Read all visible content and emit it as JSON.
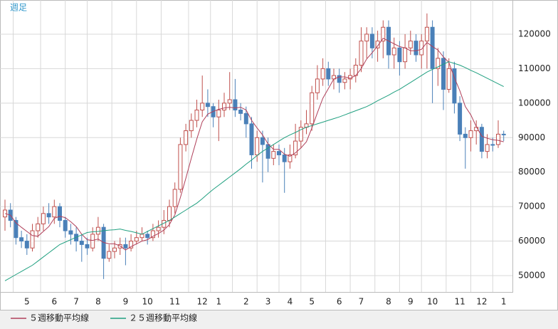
{
  "chart_data": {
    "type": "candlestick",
    "title": "週足",
    "categories": [
      null,
      null,
      null,
      null,
      "5",
      null,
      null,
      null,
      null,
      "6",
      null,
      null,
      null,
      "7",
      null,
      null,
      null,
      "8",
      null,
      null,
      null,
      null,
      "9",
      null,
      null,
      null,
      "10",
      null,
      null,
      null,
      null,
      "11",
      null,
      null,
      null,
      null,
      "12",
      null,
      null,
      "1",
      null,
      null,
      null,
      null,
      "2",
      null,
      null,
      null,
      "3",
      null,
      null,
      null,
      "4",
      null,
      null,
      null,
      "5",
      null,
      null,
      null,
      null,
      "6",
      null,
      null,
      null,
      "7",
      null,
      null,
      null,
      null,
      "8",
      null,
      null,
      null,
      "9",
      null,
      null,
      null,
      "10",
      null,
      null,
      null,
      null,
      "11",
      null,
      null,
      null,
      "12",
      null,
      null,
      null,
      "1"
    ],
    "open": [
      67000,
      69000,
      66000,
      61000,
      60000,
      58000,
      63000,
      65000,
      68000,
      67000,
      70000,
      66000,
      63000,
      62000,
      60000,
      59000,
      58000,
      62000,
      64000,
      55000,
      57000,
      58000,
      59000,
      58000,
      60000,
      61000,
      62000,
      61000,
      63000,
      64000,
      66000,
      70000,
      75000,
      88000,
      92000,
      95000,
      98000,
      100000,
      99000,
      96000,
      98000,
      100000,
      101000,
      98000,
      97000,
      94000,
      85000,
      90000,
      88000,
      84000,
      86000,
      85000,
      83000,
      85000,
      89000,
      93000,
      94000,
      103000,
      107000,
      110000,
      107000,
      108000,
      106000,
      107000,
      108000,
      111000,
      118000,
      120000,
      116000,
      118000,
      122000,
      114000,
      116000,
      112000,
      116000,
      118000,
      114000,
      118000,
      122000,
      110000,
      113000,
      104000,
      110000,
      100000,
      91000,
      90000,
      92000,
      93000,
      86000,
      88000,
      88000,
      91000
    ],
    "high": [
      72000,
      71000,
      67000,
      63000,
      62000,
      65000,
      67000,
      70000,
      71000,
      72000,
      71000,
      67000,
      65000,
      64000,
      62000,
      61000,
      64000,
      67000,
      65000,
      59000,
      60000,
      61000,
      61000,
      62000,
      63000,
      64000,
      63000,
      65000,
      66000,
      69000,
      72000,
      77000,
      90000,
      94000,
      97000,
      101000,
      108000,
      104000,
      100000,
      101000,
      103000,
      109000,
      107000,
      100000,
      99000,
      96000,
      92000,
      92000,
      90000,
      88000,
      88000,
      87000,
      88000,
      94000,
      95000,
      98000,
      105000,
      111000,
      113000,
      112000,
      110000,
      110000,
      109000,
      110000,
      113000,
      122000,
      122000,
      122000,
      121000,
      124000,
      124000,
      119000,
      118000,
      120000,
      121000,
      120000,
      120000,
      126000,
      124000,
      116000,
      115000,
      113000,
      112000,
      102000,
      93000,
      95000,
      95000,
      94000,
      91000,
      90000,
      95000,
      92000
    ],
    "low": [
      63000,
      64000,
      59000,
      58000,
      56000,
      57000,
      61000,
      63000,
      65000,
      65000,
      64000,
      61000,
      59000,
      57000,
      54000,
      56000,
      57000,
      60000,
      49000,
      54000,
      55000,
      56000,
      53000,
      57000,
      59000,
      60000,
      59000,
      60000,
      61000,
      62000,
      64000,
      68000,
      74000,
      86000,
      90000,
      93000,
      96000,
      96000,
      93000,
      89000,
      96000,
      98000,
      96000,
      95000,
      90000,
      81000,
      83000,
      77000,
      80000,
      82000,
      82000,
      74000,
      81000,
      84000,
      87000,
      91000,
      92000,
      101000,
      105000,
      105000,
      104000,
      103000,
      104000,
      104000,
      106000,
      109000,
      113000,
      113000,
      112000,
      113000,
      110000,
      110000,
      108000,
      110000,
      114000,
      112000,
      110000,
      110000,
      100000,
      105000,
      98000,
      103000,
      97000,
      89000,
      81000,
      86000,
      88000,
      84000,
      84000,
      86000,
      87000,
      89000
    ],
    "close": [
      69000,
      66000,
      61000,
      60000,
      58000,
      63000,
      65000,
      68000,
      67000,
      70000,
      66000,
      63000,
      62000,
      60000,
      59000,
      58000,
      62000,
      64000,
      55000,
      57000,
      58000,
      59000,
      58000,
      60000,
      61000,
      62000,
      61000,
      63000,
      64000,
      66000,
      70000,
      75000,
      88000,
      92000,
      95000,
      98000,
      100000,
      99000,
      96000,
      98000,
      100000,
      101000,
      98000,
      97000,
      94000,
      85000,
      90000,
      88000,
      84000,
      86000,
      85000,
      83000,
      85000,
      89000,
      93000,
      94000,
      103000,
      107000,
      110000,
      107000,
      108000,
      106000,
      107000,
      108000,
      111000,
      118000,
      120000,
      116000,
      118000,
      122000,
      114000,
      116000,
      112000,
      116000,
      118000,
      114000,
      118000,
      122000,
      110000,
      113000,
      104000,
      110000,
      100000,
      91000,
      90000,
      92000,
      93000,
      86000,
      88000,
      88000,
      91000,
      91000
    ],
    "up_color": "#c0504d",
    "down_color": "#4a80b8",
    "series": [
      {
        "name": "５週移動平均線",
        "color": "#b0405a",
        "values": [
          68000,
          67500,
          65300,
          64000,
          62800,
          61600,
          61400,
          62800,
          64200,
          66600,
          67200,
          66800,
          65600,
          64200,
          62000,
          60400,
          60200,
          60600,
          59600,
          59200,
          59200,
          58600,
          57400,
          58400,
          59200,
          60000,
          60400,
          61400,
          62200,
          63200,
          64800,
          67600,
          72600,
          78200,
          84000,
          89600,
          94600,
          96800,
          97600,
          98200,
          98600,
          98800,
          98600,
          98800,
          98000,
          95000,
          92800,
          90800,
          88200,
          86600,
          86600,
          85200,
          84600,
          85600,
          87000,
          88800,
          92800,
          97200,
          101400,
          104200,
          107000,
          107600,
          107600,
          107200,
          108000,
          110000,
          112800,
          114600,
          116600,
          118800,
          118000,
          117200,
          116400,
          116000,
          115200,
          115200,
          115600,
          117600,
          116400,
          115400,
          113400,
          111800,
          107400,
          103600,
          99000,
          96600,
          93200,
          90400,
          89800,
          89400,
          89200,
          88800
        ]
      },
      {
        "name": "２５週移動平均線",
        "color": "#20a080",
        "values": [
          48500,
          49400,
          50300,
          51200,
          52100,
          53000,
          54200,
          55400,
          56600,
          57800,
          59000,
          59700,
          60400,
          61100,
          61800,
          62500,
          62700,
          62800,
          63000,
          63200,
          63300,
          63500,
          63100,
          62800,
          62400,
          62000,
          62800,
          63600,
          64400,
          65200,
          66000,
          67000,
          68000,
          69000,
          70000,
          71000,
          72300,
          73700,
          75000,
          76200,
          77400,
          78600,
          79800,
          81000,
          82300,
          83500,
          84800,
          86000,
          87000,
          88000,
          89000,
          90000,
          90800,
          91500,
          92300,
          93000,
          93500,
          94000,
          94500,
          95000,
          95500,
          96000,
          96600,
          97200,
          97800,
          98400,
          99000,
          99800,
          100700,
          101500,
          102300,
          103200,
          104000,
          105000,
          106000,
          107000,
          108000,
          109000,
          109800,
          110500,
          111300,
          112000,
          111500,
          111000,
          110300,
          109500,
          108800,
          108000,
          107200,
          106400,
          105600,
          104800
        ]
      }
    ],
    "ylim": [
      45250,
      129900
    ],
    "yticks": [
      50000,
      60000,
      70000,
      80000,
      90000,
      100000,
      110000,
      120000
    ],
    "grid": true
  }
}
